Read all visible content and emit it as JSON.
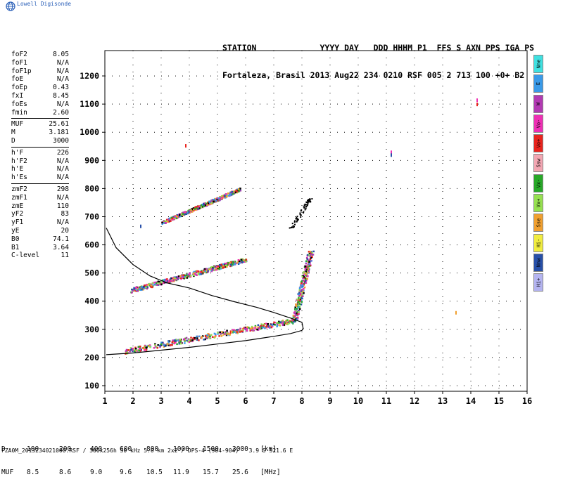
{
  "brand": {
    "name": "Lowell Digisonde",
    "logo_icon": "globe-icon"
  },
  "header": {
    "line1": "STATION             YYYY DAY   DDD HHHM P1  FFS S AXN PPS IGA PS",
    "line2": "Fortaleza, Brasil 2013 Aug22 234 0210 RSF 005 2 713 100 +0+ B2"
  },
  "params": {
    "group1": [
      {
        "label": "foF2",
        "value": "8.05"
      },
      {
        "label": "foF1",
        "value": "N/A"
      },
      {
        "label": "foF1p",
        "value": "N/A"
      },
      {
        "label": "foE",
        "value": "N/A"
      },
      {
        "label": "foEp",
        "value": "0.43"
      },
      {
        "label": "fxI",
        "value": "8.45"
      },
      {
        "label": "foEs",
        "value": "N/A"
      },
      {
        "label": "fmin",
        "value": "2.60"
      }
    ],
    "group2": [
      {
        "label": "MUF",
        "value": "25.61"
      },
      {
        "label": "M",
        "value": "3.181"
      },
      {
        "label": "D",
        "value": "3000"
      }
    ],
    "group3": [
      {
        "label": "h'F",
        "value": "226"
      },
      {
        "label": "h'F2",
        "value": "N/A"
      },
      {
        "label": "h'E",
        "value": "N/A"
      },
      {
        "label": "h'Es",
        "value": "N/A"
      }
    ],
    "group4": [
      {
        "label": "zmF2",
        "value": "298"
      },
      {
        "label": "zmF1",
        "value": "N/A"
      },
      {
        "label": "zmE",
        "value": "110"
      },
      {
        "label": "yF2",
        "value": "83"
      },
      {
        "label": "yF1",
        "value": "N/A"
      },
      {
        "label": "yE",
        "value": "20"
      },
      {
        "label": "B0",
        "value": "74.1"
      },
      {
        "label": "B1",
        "value": "3.64"
      },
      {
        "label": "C-level",
        "value": "11"
      }
    ]
  },
  "legend": [
    {
      "label": "Nne",
      "color": "#40e0e0"
    },
    {
      "label": "E",
      "color": "#3a9ae8"
    },
    {
      "label": "W",
      "color": "#b23ab2"
    },
    {
      "label": "Vo-",
      "color": "#ee2fb4"
    },
    {
      "label": "Vo+",
      "color": "#e8241e"
    },
    {
      "label": "Ssw",
      "color": "#f2a6b2"
    },
    {
      "label": "Vx-",
      "color": "#28a828"
    },
    {
      "label": "Vx+",
      "color": "#96e050"
    },
    {
      "label": "Sse",
      "color": "#f0a030"
    },
    {
      "label": "Hi-",
      "color": "#f0ec40"
    },
    {
      "label": "Nnw",
      "color": "#2850a8"
    },
    {
      "label": "Hi+",
      "color": "#b4b4f0"
    }
  ],
  "footer": {
    "d_label": "D",
    "d_values": [
      "100",
      "200",
      "400",
      "600",
      "800",
      "1000",
      "1500",
      "3000"
    ],
    "d_unit": "[km]",
    "muf_label": "MUF",
    "muf_values": [
      "8.5",
      "8.6",
      "9.0",
      "9.6",
      "10.5",
      "11.9",
      "15.7",
      "25.6"
    ],
    "muf_unit": "[MHz]",
    "file_info": "FZA0M_2013234021000.RSF / 300x256h 50 kHz 5.0 km 2x2 / DPS-4 (904-904)   3.9 S 321.6 E"
  },
  "chart_data": {
    "type": "scatter",
    "xlim": [
      1,
      16
    ],
    "ylim": [
      80,
      1290
    ],
    "x_ticks": [
      1,
      2,
      3,
      4,
      5,
      6,
      7,
      8,
      9,
      10,
      11,
      12,
      13,
      14,
      15,
      16
    ],
    "y_ticks": [
      100,
      200,
      300,
      400,
      500,
      600,
      700,
      800,
      900,
      1000,
      1100,
      1200
    ],
    "grid": true,
    "traces": [
      {
        "name_hidden": "o-trace F2",
        "x_range": [
          1.7,
          7.8
        ],
        "h_start": 225,
        "h_end": 335,
        "band": 18
      },
      {
        "name_hidden": "second hop",
        "x_range": [
          1.9,
          6.0
        ],
        "h_start": 440,
        "h_end": 550,
        "band": 15
      },
      {
        "name_hidden": "third hop",
        "x_range": [
          3.0,
          5.8
        ],
        "h_start": 680,
        "h_end": 800,
        "band": 12
      }
    ],
    "profile_curve": [
      [
        1.05,
        660
      ],
      [
        1.4,
        590
      ],
      [
        2.0,
        530
      ],
      [
        2.6,
        490
      ],
      [
        3.2,
        465
      ],
      [
        4.0,
        447
      ],
      [
        4.8,
        420
      ],
      [
        5.6,
        398
      ],
      [
        6.4,
        378
      ],
      [
        7.0,
        360
      ],
      [
        7.6,
        340
      ],
      [
        8.0,
        325
      ],
      [
        8.05,
        300
      ]
    ],
    "bottom_curve": [
      [
        1.05,
        210
      ],
      [
        2.0,
        216
      ],
      [
        3.0,
        226
      ],
      [
        4.0,
        236
      ],
      [
        5.0,
        248
      ],
      [
        6.0,
        260
      ],
      [
        7.0,
        275
      ],
      [
        7.6,
        285
      ],
      [
        8.0,
        296
      ],
      [
        8.05,
        305
      ]
    ]
  }
}
